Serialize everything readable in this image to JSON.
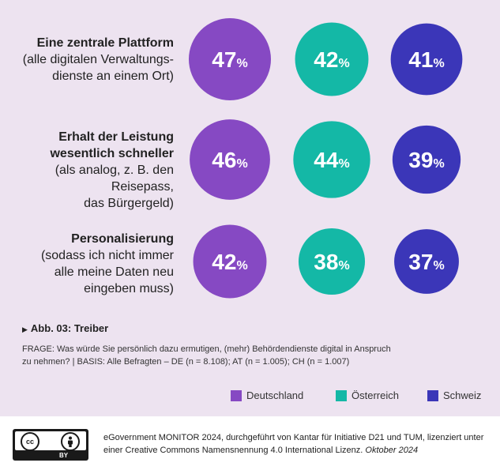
{
  "chart_data": {
    "type": "bubble-grid",
    "title": "",
    "series": [
      {
        "name": "Deutschland",
        "color": "#8649c3"
      },
      {
        "name": "Österreich",
        "color": "#14b8a6"
      },
      {
        "name": "Schweiz",
        "color": "#3b36b8"
      }
    ],
    "rows": [
      {
        "label_bold": [
          "Eine zentrale Plattform"
        ],
        "label_sub": [
          "(alle digitalen Verwaltungs-",
          "dienste an einem Ort)"
        ],
        "values": [
          47,
          42,
          41
        ]
      },
      {
        "label_bold": [
          "Erhalt der Leistung",
          "wesentlich schneller"
        ],
        "label_sub": [
          "(als analog, z. B. den Reisepass,",
          "das Bürgergeld)"
        ],
        "values": [
          46,
          44,
          39
        ]
      },
      {
        "label_bold": [
          "Personalisierung"
        ],
        "label_sub": [
          "(sodass ich nicht immer",
          "alle meine Daten neu",
          "eingeben muss)"
        ],
        "values": [
          42,
          38,
          37
        ]
      }
    ],
    "value_suffix": "%"
  },
  "caption": {
    "figure_label": "Abb. 03: Treiber",
    "frage": "FRAGE: Was würde Sie persönlich dazu ermutigen, (mehr) Behördendienste digital in Anspruch zu nehmen? | BASIS: Alle Befragten – DE (n = 8.108); AT (n = 1.005); CH (n = 1.007)"
  },
  "footer": {
    "text": "eGovernment MONITOR 2024, durchgeführt von Kantar für Initiative D21 und TUM, lizenziert unter einer Creative Commons Namensnennung 4.0 International Lizenz.",
    "date": "Oktober 2024",
    "license_badge": {
      "cc": "cc",
      "by_icon": "person-icon",
      "by": "BY"
    }
  },
  "colors": {
    "background": "#ede3f0",
    "deutschland": "#8649c3",
    "oesterreich": "#14b8a6",
    "schweiz": "#3b36b8"
  }
}
